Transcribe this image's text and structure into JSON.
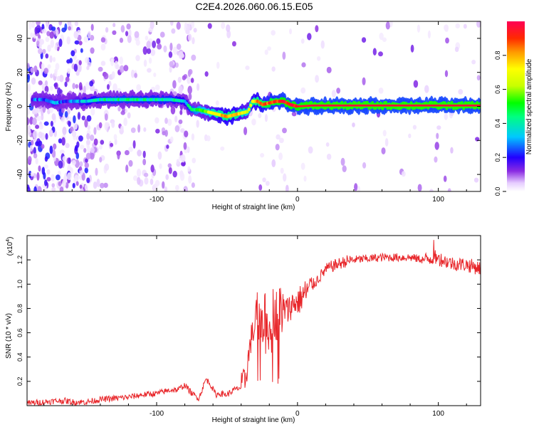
{
  "title": "C2E4.2026.060.06.15.E05",
  "colors": {
    "snr_line": "#e8262a",
    "axis": "#000000",
    "background": "#ffffff"
  },
  "chart_data": [
    {
      "type": "heatmap",
      "title": "C2E4.2026.060.06.15.E05",
      "xlabel": "Height of straight line (km)",
      "ylabel": "Frequency (Hz)",
      "xlim": [
        -192,
        130
      ],
      "ylim": [
        -50,
        50
      ],
      "xticks": [
        -100,
        0,
        100
      ],
      "xtick_labels": [
        "-100",
        "0",
        "100"
      ],
      "yticks": [
        -40,
        -20,
        0,
        20,
        40
      ],
      "ytick_labels": [
        "-40",
        "-20",
        "0",
        "20",
        "40"
      ],
      "colorbar": {
        "label": "Normalized spectral amplitude",
        "range": [
          0,
          1
        ],
        "ticks": [
          0.0,
          0.2,
          0.4,
          0.6,
          0.8
        ],
        "tick_labels": [
          "0.0",
          "0.2",
          "0.4",
          "0.6",
          "0.8"
        ]
      },
      "ridge": {
        "x": [
          -180,
          -172,
          -165,
          -150,
          -140,
          -130,
          -120,
          -110,
          -100,
          -90,
          -80,
          -75,
          -70,
          -65,
          -60,
          -55,
          -50,
          -45,
          -40,
          -35,
          -32,
          -28,
          -25,
          -20,
          -15,
          -10,
          -5,
          0,
          10,
          50,
          100,
          130
        ],
        "frequency": [
          4,
          2,
          3,
          3,
          4,
          4,
          4,
          4,
          4,
          4,
          3,
          -2,
          -2,
          -3,
          -4,
          -5,
          -6,
          -5,
          -4,
          -3,
          3,
          3,
          1,
          2,
          3,
          3,
          1,
          0,
          0.5,
          0.5,
          0.5,
          0.5
        ],
        "amplitude": [
          0.25,
          0.3,
          0.2,
          0.35,
          0.4,
          0.42,
          0.42,
          0.4,
          0.4,
          0.4,
          0.35,
          0.45,
          0.55,
          0.6,
          0.7,
          0.75,
          0.8,
          0.8,
          0.7,
          0.6,
          0.75,
          0.8,
          0.85,
          0.9,
          0.9,
          0.95,
          0.95,
          0.95,
          0.97,
          0.97,
          0.97,
          0.97
        ]
      }
    },
    {
      "type": "line",
      "xlabel": "Height of straight line (km)",
      "ylabel": "SNR (10 * v/v)",
      "y_multiplier": "(x10^4)",
      "y_multiplier_parts": {
        "base": "(x10",
        "exp": "4",
        "close": ")"
      },
      "xlim": [
        -192,
        130
      ],
      "ylim": [
        0,
        1.4
      ],
      "xticks": [
        -100,
        0,
        100
      ],
      "xtick_labels": [
        "-100",
        "0",
        "100"
      ],
      "yticks": [
        0.2,
        0.4,
        0.6,
        0.8,
        1.0,
        1.2
      ],
      "ytick_labels": [
        "0.2",
        "0.4",
        "0.6",
        "0.8",
        "1.0",
        "1.2"
      ],
      "series": [
        {
          "name": "SNR",
          "x": [
            -192,
            -180,
            -170,
            -165,
            -160,
            -150,
            -140,
            -130,
            -120,
            -110,
            -100,
            -90,
            -85,
            -80,
            -75,
            -70,
            -65,
            -62,
            -58,
            -55,
            -50,
            -45,
            -40,
            -37,
            -35,
            -33,
            -30,
            -27,
            -25,
            -22,
            -20,
            -17,
            -15,
            -12,
            -10,
            -7,
            -5,
            -2,
            0,
            5,
            10,
            15,
            20,
            25,
            30,
            35,
            40,
            50,
            60,
            70,
            80,
            90,
            98,
            105,
            110,
            120,
            130
          ],
          "values": [
            0.02,
            0.03,
            0.04,
            0.04,
            0.03,
            0.03,
            0.05,
            0.06,
            0.07,
            0.09,
            0.1,
            0.13,
            0.13,
            0.17,
            0.1,
            0.06,
            0.22,
            0.18,
            0.09,
            0.1,
            0.09,
            0.13,
            0.15,
            0.22,
            0.38,
            0.55,
            0.65,
            0.78,
            0.7,
            0.72,
            0.74,
            0.78,
            0.75,
            0.78,
            0.8,
            0.78,
            0.82,
            0.85,
            0.85,
            0.92,
            0.98,
            1.05,
            1.12,
            1.15,
            1.17,
            1.19,
            1.2,
            1.21,
            1.22,
            1.22,
            1.22,
            1.2,
            1.22,
            1.19,
            1.17,
            1.16,
            1.13
          ]
        }
      ]
    }
  ]
}
